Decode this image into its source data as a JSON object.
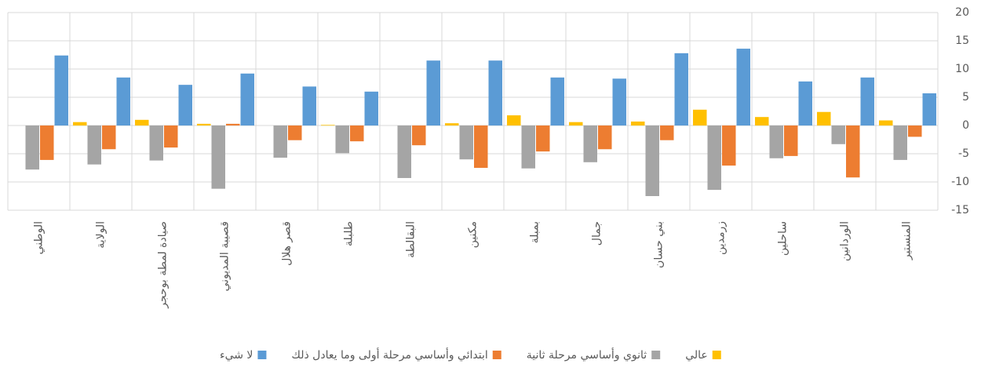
{
  "chart_data": {
    "type": "bar",
    "categories": [
      "المنستير",
      "الوردانين",
      "ساحلين",
      "زرمدين",
      "بني حسان",
      "جمال",
      "بمبلة",
      "مكنين",
      "البقالطة",
      "طلبلة",
      "قصر هلال",
      "قصيبة المديوني",
      "صيادة لمطة بوحجر",
      "الولاية",
      "الوطني"
    ],
    "series": [
      {
        "name": "لا شيء",
        "color": "#5b9bd5",
        "values": [
          5.7,
          8.5,
          7.8,
          13.6,
          12.8,
          8.3,
          8.5,
          11.5,
          11.5,
          6.0,
          6.9,
          9.2,
          7.2,
          8.5,
          12.4
        ]
      },
      {
        "name": "ابتدائي وأساسي مرحلة أولى وما يعادل ذلك",
        "color": "#ed7d31",
        "values": [
          -2.0,
          -9.2,
          -5.4,
          -7.1,
          -2.6,
          -4.2,
          -4.6,
          -7.5,
          -3.5,
          -2.8,
          -2.6,
          0.3,
          -3.9,
          -4.2,
          -6.1
        ]
      },
      {
        "name": "ثانوي وأساسي مرحلة ثانية",
        "color": "#a5a5a5",
        "values": [
          -6.1,
          -3.3,
          -5.8,
          -11.4,
          -12.5,
          -6.5,
          -7.6,
          -6.0,
          -9.3,
          -4.9,
          -5.7,
          -11.2,
          -6.2,
          -6.9,
          -7.8
        ]
      },
      {
        "name": "عالي",
        "color": "#ffc000",
        "values": [
          0.9,
          2.4,
          1.5,
          2.8,
          0.7,
          0.6,
          1.8,
          0.4,
          0.0,
          0.1,
          0.0,
          0.3,
          1.0,
          0.6,
          0.0
        ]
      }
    ],
    "ylim": [
      -15,
      20
    ],
    "yticks": [
      -15,
      -10,
      -5,
      0,
      5,
      10,
      15,
      20
    ],
    "grid": true,
    "reverse_x": true,
    "y_axis_side": "right",
    "legend": "bottom"
  }
}
